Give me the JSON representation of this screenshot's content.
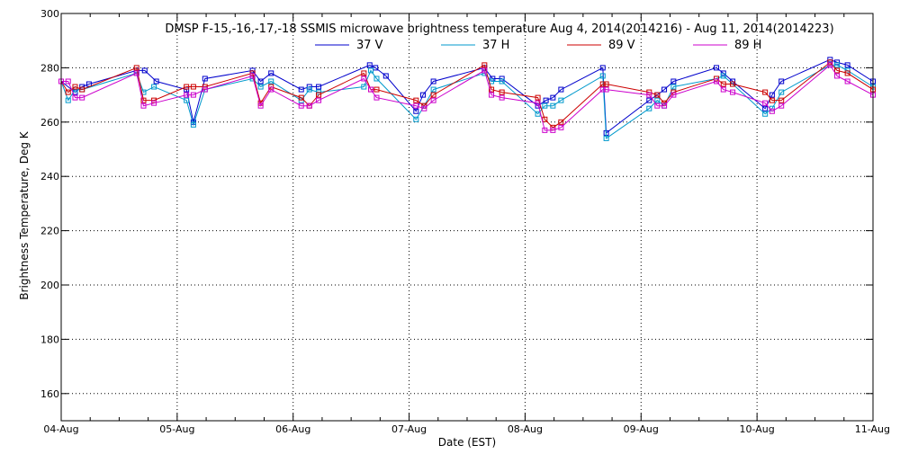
{
  "chart_data": {
    "type": "line",
    "title": "DMSP F-15,-16,-17,-18 SSMIS microwave brightness temperature Aug  4, 2014(2014216) - Aug 11, 2014(2014223)",
    "xlabel": "Date (EST)",
    "ylabel": "Brightness Temperature, Deg K",
    "x_unit": "days since 04-Aug",
    "xlim": [
      0,
      7
    ],
    "ylim": [
      150,
      300
    ],
    "x_ticks": [
      {
        "x": 0,
        "label": "04-Aug"
      },
      {
        "x": 1,
        "label": "05-Aug"
      },
      {
        "x": 2,
        "label": "06-Aug"
      },
      {
        "x": 3,
        "label": "07-Aug"
      },
      {
        "x": 4,
        "label": "08-Aug"
      },
      {
        "x": 5,
        "label": "09-Aug"
      },
      {
        "x": 6,
        "label": "10-Aug"
      },
      {
        "x": 7,
        "label": "11-Aug"
      }
    ],
    "y_ticks": [
      160,
      180,
      200,
      220,
      240,
      260,
      280,
      300
    ],
    "grid": true,
    "legend_position": "top",
    "series": [
      {
        "name": "37 V",
        "color": "#0000cc",
        "x": [
          0.0,
          0.12,
          0.18,
          0.24,
          0.65,
          0.72,
          0.82,
          1.08,
          1.14,
          1.24,
          1.65,
          1.72,
          1.81,
          2.07,
          2.14,
          2.22,
          2.66,
          2.71,
          2.8,
          3.06,
          3.12,
          3.21,
          3.65,
          3.72,
          3.8,
          4.11,
          4.18,
          4.24,
          4.31,
          4.67,
          4.7,
          5.07,
          5.14,
          5.2,
          5.28,
          5.65,
          5.71,
          5.79,
          6.07,
          6.13,
          6.21,
          6.63,
          6.69,
          6.78,
          7.0
        ],
        "y": [
          275,
          271,
          273,
          274,
          279,
          279,
          275,
          272,
          260,
          276,
          279,
          275,
          278,
          272,
          273,
          273,
          281,
          280,
          277,
          264,
          270,
          275,
          280,
          276,
          276,
          266,
          268,
          269,
          272,
          280,
          256,
          268,
          270,
          272,
          275,
          280,
          278,
          275,
          265,
          270,
          275,
          283,
          282,
          281,
          275
        ]
      },
      {
        "name": "37 H",
        "color": "#0099cc",
        "x": [
          0.0,
          0.06,
          0.12,
          0.18,
          0.65,
          0.71,
          0.8,
          1.08,
          1.14,
          1.24,
          1.65,
          1.72,
          1.81,
          2.07,
          2.14,
          2.22,
          2.61,
          2.67,
          2.72,
          3.06,
          3.13,
          3.21,
          3.65,
          3.71,
          3.8,
          4.11,
          4.17,
          4.24,
          4.31,
          4.67,
          4.7,
          5.07,
          5.14,
          5.2,
          5.28,
          5.65,
          5.71,
          5.79,
          6.07,
          6.13,
          6.21,
          6.63,
          6.69,
          6.78,
          7.0
        ],
        "y": [
          275,
          268,
          272,
          272,
          278,
          271,
          273,
          268,
          259,
          272,
          276,
          273,
          275,
          268,
          272,
          271,
          273,
          279,
          276,
          261,
          266,
          272,
          278,
          275,
          275,
          263,
          266,
          266,
          268,
          277,
          254,
          265,
          268,
          266,
          273,
          276,
          277,
          274,
          263,
          265,
          271,
          281,
          281,
          279,
          273
        ]
      },
      {
        "name": "89 V",
        "color": "#cc0000",
        "x": [
          0.0,
          0.06,
          0.12,
          0.18,
          0.65,
          0.71,
          0.8,
          1.08,
          1.14,
          1.24,
          1.65,
          1.72,
          1.81,
          2.07,
          2.14,
          2.22,
          2.61,
          2.67,
          2.72,
          3.06,
          3.13,
          3.21,
          3.65,
          3.71,
          3.8,
          4.11,
          4.17,
          4.24,
          4.31,
          4.67,
          4.7,
          5.07,
          5.14,
          5.2,
          5.28,
          5.65,
          5.71,
          5.79,
          6.07,
          6.13,
          6.21,
          6.63,
          6.69,
          6.78,
          7.0
        ],
        "y": [
          275,
          271,
          273,
          272,
          280,
          268,
          268,
          273,
          273,
          273,
          278,
          267,
          273,
          269,
          266,
          270,
          278,
          272,
          272,
          268,
          266,
          270,
          281,
          272,
          271,
          269,
          261,
          258,
          260,
          274,
          274,
          271,
          270,
          267,
          271,
          276,
          274,
          274,
          271,
          268,
          268,
          282,
          279,
          278,
          272
        ]
      },
      {
        "name": "89 H",
        "color": "#cc00cc",
        "x": [
          0.0,
          0.06,
          0.12,
          0.18,
          0.65,
          0.71,
          0.8,
          1.08,
          1.14,
          1.24,
          1.65,
          1.72,
          1.81,
          2.07,
          2.14,
          2.22,
          2.61,
          2.67,
          2.72,
          3.06,
          3.13,
          3.21,
          3.65,
          3.71,
          3.8,
          4.11,
          4.17,
          4.24,
          4.31,
          4.67,
          4.7,
          5.07,
          5.14,
          5.2,
          5.28,
          5.65,
          5.71,
          5.79,
          6.07,
          6.13,
          6.21,
          6.63,
          6.69,
          6.78,
          7.0
        ],
        "y": [
          275,
          275,
          269,
          269,
          278,
          266,
          267,
          270,
          270,
          272,
          277,
          266,
          272,
          266,
          266,
          268,
          276,
          272,
          269,
          266,
          265,
          268,
          279,
          270,
          269,
          267,
          257,
          257,
          258,
          272,
          272,
          270,
          266,
          266,
          270,
          275,
          272,
          271,
          267,
          264,
          266,
          281,
          277,
          275,
          270
        ]
      }
    ]
  }
}
